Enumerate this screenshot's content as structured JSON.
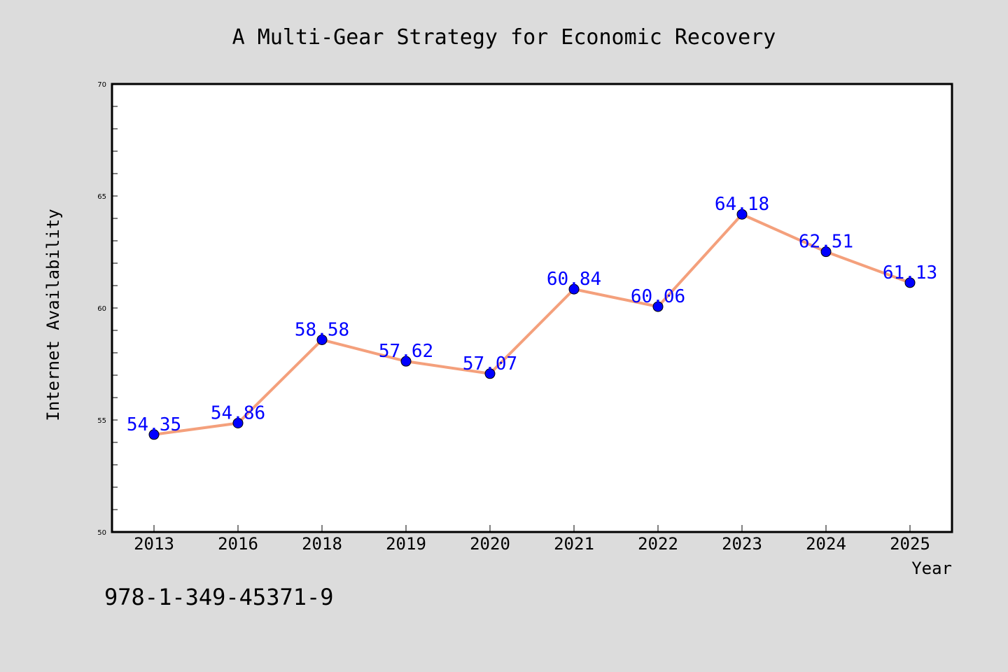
{
  "chart_data": {
    "type": "line",
    "title": "A Multi-Gear Strategy for Economic Recovery",
    "xlabel": "Year",
    "ylabel": "Internet Availability",
    "categories": [
      "2013",
      "2016",
      "2018",
      "2019",
      "2020",
      "2021",
      "2022",
      "2023",
      "2024",
      "2025"
    ],
    "series": [
      {
        "values": [
          54.35,
          54.86,
          58.58,
          57.62,
          57.07,
          60.84,
          60.06,
          64.18,
          62.51,
          61.13
        ],
        "labels": [
          "54.35",
          "54.86",
          "58.58",
          "57.62",
          "57.07",
          "60.84",
          "60.06",
          "64.18",
          "62.51",
          "61.13"
        ],
        "line_color": "#f4a07c",
        "marker_color": "#0000ff"
      }
    ],
    "ylim": [
      50,
      70
    ],
    "yticks": [
      "50",
      "55",
      "60",
      "65",
      "70"
    ],
    "grid": false,
    "label_color": "#0000ff"
  },
  "footnote": "978-1-349-45371-9",
  "colors": {
    "background": "#dcdcdc",
    "plot_background": "#ffffff"
  }
}
